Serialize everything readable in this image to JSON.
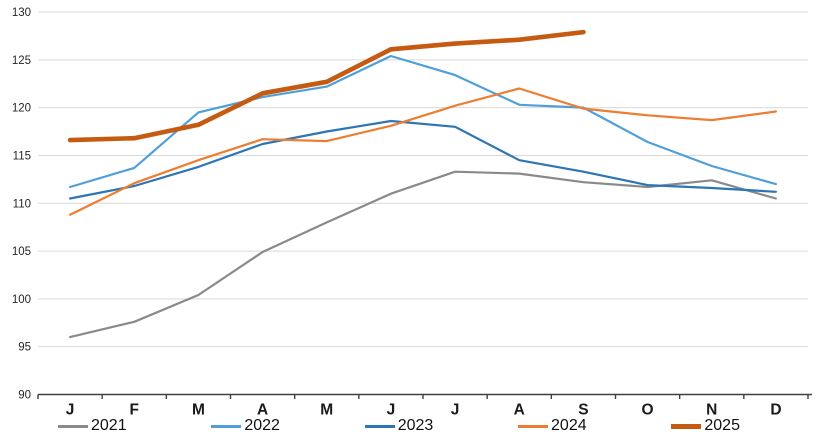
{
  "chart_data": {
    "type": "line",
    "title": "",
    "xlabel": "",
    "ylabel": "",
    "ylim": [
      90,
      130
    ],
    "grid": "horizontal",
    "legend_position": "bottom",
    "x_labels": [
      "J",
      "F",
      "M",
      "A",
      "M",
      "J",
      "J",
      "A",
      "S",
      "O",
      "N",
      "D"
    ],
    "y_ticks": [
      90,
      95,
      100,
      105,
      110,
      115,
      120,
      125,
      130
    ],
    "series": [
      {
        "name": "2021",
        "color": "#8A8A8A",
        "line_width": 2.2,
        "values": [
          96.0,
          97.6,
          100.4,
          104.9,
          108.0,
          111.0,
          113.3,
          113.1,
          112.2,
          111.7,
          112.4,
          110.5
        ]
      },
      {
        "name": "2022",
        "color": "#4F9FDA",
        "line_width": 2.2,
        "values": [
          111.7,
          113.7,
          119.5,
          121.1,
          122.2,
          125.4,
          123.4,
          120.3,
          120.0,
          116.4,
          113.9,
          112.0
        ]
      },
      {
        "name": "2023",
        "color": "#2E75B6",
        "line_width": 2.2,
        "values": [
          110.5,
          111.8,
          113.8,
          116.2,
          117.5,
          118.6,
          118.0,
          114.5,
          113.3,
          111.9,
          111.6,
          111.2
        ]
      },
      {
        "name": "2024",
        "color": "#ED7D31",
        "line_width": 2.2,
        "values": [
          108.8,
          112.1,
          114.5,
          116.7,
          116.5,
          118.1,
          120.2,
          122.0,
          119.9,
          119.2,
          118.7,
          119.6
        ]
      },
      {
        "name": "2025",
        "color": "#C55A11",
        "line_width": 4.6,
        "values": [
          116.6,
          116.8,
          118.2,
          121.5,
          122.7,
          126.1,
          126.7,
          127.1,
          127.9,
          null,
          null,
          null
        ]
      }
    ],
    "axis_color": "#404040",
    "gridline_color": "#D9D9D9",
    "tick_label_color": "#262626",
    "month_label_color": "#1a1a1a"
  }
}
